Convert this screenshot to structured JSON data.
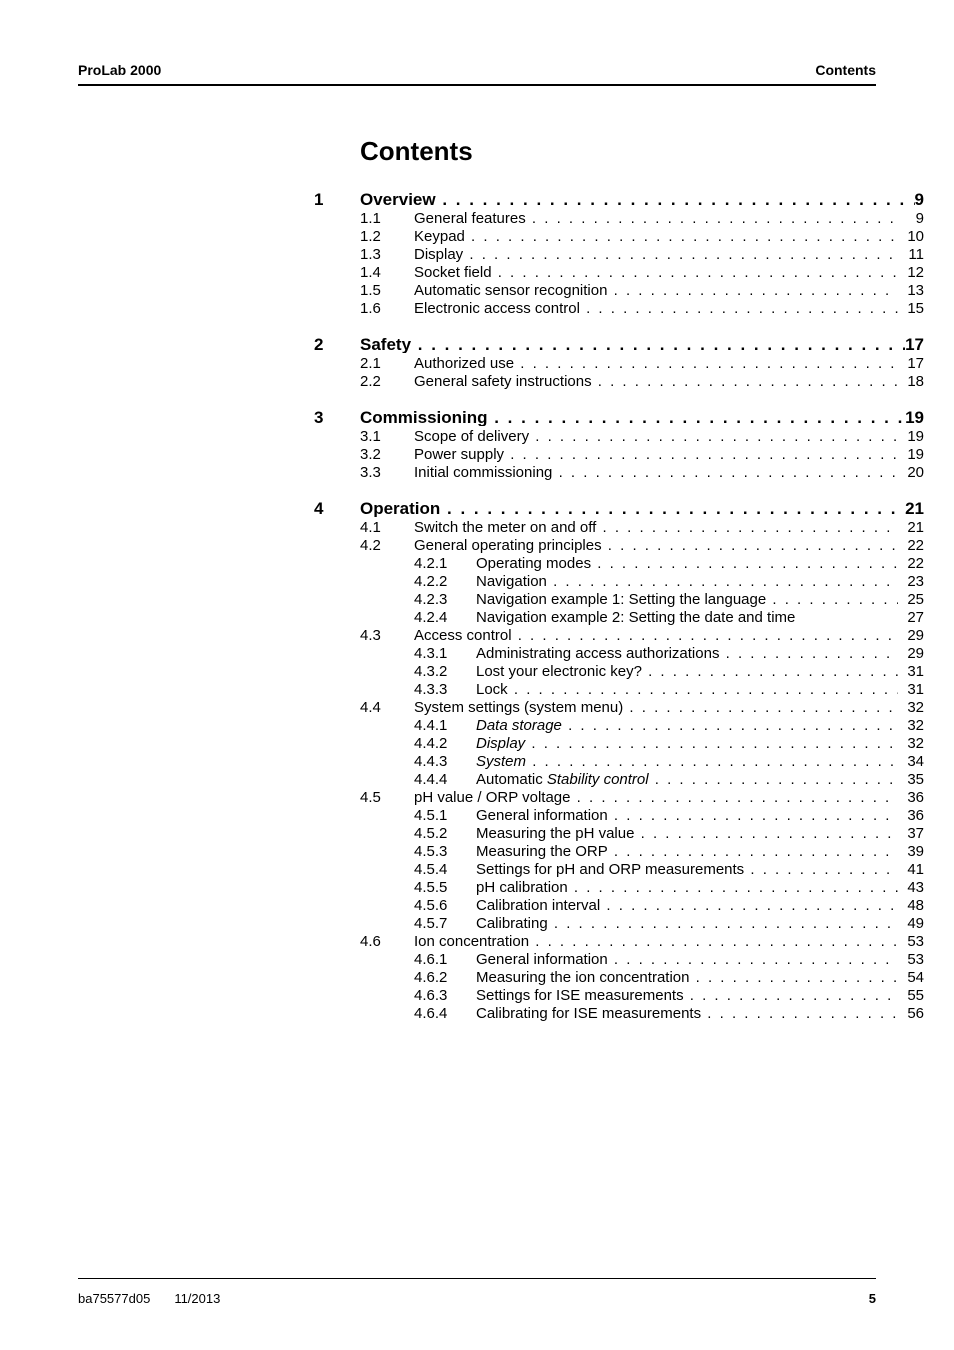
{
  "header": {
    "left": "ProLab 2000",
    "right": "Contents"
  },
  "title": "Contents",
  "leader": " .  .  .  .  .  .  .  .  .  .  .  .  .  .  .  .  .  .  .  .  .  .  .  .  .  .  .  .  .  .  .  .  .  .  .  .  .  .  .  .  .  .  .  .  .  .  .  .  .  .  .  .  .  .  .  .  .  .  .  .  .  .  .  .",
  "chapters": [
    {
      "num": "1",
      "title": "Overview",
      "page": "9",
      "sections": [
        {
          "num": "1.1",
          "title": "General features",
          "page": "9"
        },
        {
          "num": "1.2",
          "title": "Keypad",
          "page": "10"
        },
        {
          "num": "1.3",
          "title": "Display",
          "page": "11"
        },
        {
          "num": "1.4",
          "title": "Socket field",
          "page": "12"
        },
        {
          "num": "1.5",
          "title": "Automatic sensor recognition",
          "page": "13"
        },
        {
          "num": "1.6",
          "title": "Electronic access control",
          "page": "15"
        }
      ]
    },
    {
      "num": "2",
      "title": "Safety",
      "page": "17",
      "sections": [
        {
          "num": "2.1",
          "title": "Authorized use",
          "page": "17"
        },
        {
          "num": "2.2",
          "title": "General safety instructions",
          "page": "18"
        }
      ]
    },
    {
      "num": "3",
      "title": "Commissioning",
      "page": "19",
      "sections": [
        {
          "num": "3.1",
          "title": "Scope of delivery",
          "page": "19"
        },
        {
          "num": "3.2",
          "title": "Power supply",
          "page": "19"
        },
        {
          "num": "3.3",
          "title": "Initial commissioning",
          "page": "20"
        }
      ]
    },
    {
      "num": "4",
      "title": "Operation",
      "page": "21",
      "sections": [
        {
          "num": "4.1",
          "title": "Switch the meter on and off",
          "page": "21"
        },
        {
          "num": "4.2",
          "title": "General operating principles",
          "page": "22",
          "subs": [
            {
              "num": "4.2.1",
              "title": "Operating modes",
              "page": "22"
            },
            {
              "num": "4.2.2",
              "title": "Navigation",
              "page": "23"
            },
            {
              "num": "4.2.3",
              "title": "Navigation example 1: Setting the language",
              "page": "25"
            },
            {
              "num": "4.2.4",
              "title": "Navigation example 2: Setting the date and time",
              "page": "27",
              "noleader": true
            }
          ]
        },
        {
          "num": "4.3",
          "title": "Access control",
          "page": "29",
          "subs": [
            {
              "num": "4.3.1",
              "title": "Administrating access authorizations",
              "page": "29"
            },
            {
              "num": "4.3.2",
              "title": "Lost your electronic key?",
              "page": "31"
            },
            {
              "num": "4.3.3",
              "title": "Lock",
              "page": "31"
            }
          ]
        },
        {
          "num": "4.4",
          "title": "System settings (system menu)",
          "page": "32",
          "subs": [
            {
              "num": "4.4.1",
              "title": "Data storage",
              "page": "32",
              "italic": true
            },
            {
              "num": "4.4.2",
              "title": "Display",
              "page": "32",
              "italic": true
            },
            {
              "num": "4.4.3",
              "title": "System",
              "page": "34",
              "italic": true
            },
            {
              "num": "4.4.4",
              "title_pre": "Automatic ",
              "title_em": "Stability control",
              "page": "35",
              "mixed": true
            }
          ]
        },
        {
          "num": "4.5",
          "title": "pH value / ORP voltage",
          "page": "36",
          "subs": [
            {
              "num": "4.5.1",
              "title": "General information",
              "page": "36"
            },
            {
              "num": "4.5.2",
              "title": "Measuring the pH value",
              "page": "37"
            },
            {
              "num": "4.5.3",
              "title": "Measuring the ORP",
              "page": "39"
            },
            {
              "num": "4.5.4",
              "title": "Settings for pH and ORP measurements",
              "page": "41"
            },
            {
              "num": "4.5.5",
              "title": "pH calibration",
              "page": "43"
            },
            {
              "num": "4.5.6",
              "title": "Calibration interval",
              "page": "48"
            },
            {
              "num": "4.5.7",
              "title": "Calibrating",
              "page": "49"
            }
          ]
        },
        {
          "num": "4.6",
          "title": "Ion concentration",
          "page": "53",
          "subs": [
            {
              "num": "4.6.1",
              "title": "General information",
              "page": "53"
            },
            {
              "num": "4.6.2",
              "title": "Measuring the ion concentration",
              "page": "54"
            },
            {
              "num": "4.6.3",
              "title": "Settings for ISE measurements",
              "page": "55"
            },
            {
              "num": "4.6.4",
              "title": "Calibrating for ISE measurements",
              "page": "56"
            }
          ]
        }
      ]
    }
  ],
  "footer": {
    "doc_id": "ba75577d05",
    "date": "11/2013",
    "page": "5"
  }
}
